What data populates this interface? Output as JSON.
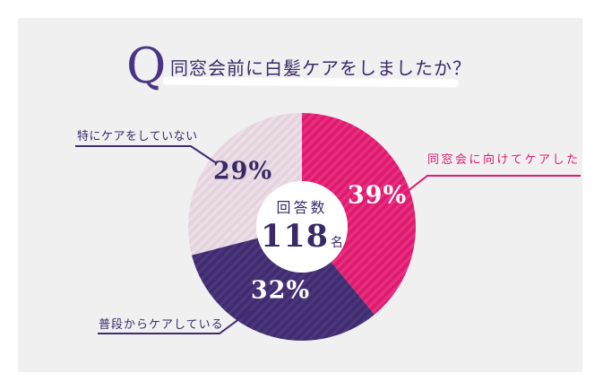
{
  "page": {
    "background": "#FFFFFF",
    "panel_background": "#F0F0F1"
  },
  "header": {
    "q_mark": "Q",
    "title": "同窓会前に白髪ケアをしましたか？"
  },
  "donut_center": {
    "label": "回答数",
    "count": "118",
    "unit": "名"
  },
  "colors": {
    "magenta": "#DF1970",
    "magenta_stripe": "#E6317E",
    "dark_purple": "#3F2B6E",
    "dark_purple_stripe": "#4B377C",
    "pale_pink": "#E4D3DE",
    "pale_pink_stripe": "#ECDFE7",
    "title_text": "#392A66",
    "q_mark_color": "#4A3585",
    "white": "#FFFFFF"
  },
  "chart_data": {
    "type": "pie",
    "donut": true,
    "title": "同窓会前に白髪ケアをしましたか？",
    "start_angle_deg": 0,
    "direction": "clockwise",
    "center_label": "回答数",
    "total_responses": 118,
    "total_unit": "名",
    "slices": [
      {
        "label": "同窓会に向けてケアした",
        "value_pct": 39,
        "pct_label": "39%",
        "color": "#DF1970",
        "stripe_color": "#E6317E",
        "pct_text_color": "#FFFFFF",
        "label_color": "#DF1970"
      },
      {
        "label": "普段からケアしている",
        "value_pct": 32,
        "pct_label": "32%",
        "color": "#3F2B6E",
        "stripe_color": "#4B377C",
        "pct_text_color": "#FFFFFF",
        "label_color": "#392A66"
      },
      {
        "label": "特にケアをしていない",
        "value_pct": 29,
        "pct_label": "29%",
        "color": "#E4D3DE",
        "stripe_color": "#ECDFE7",
        "pct_text_color": "#392A66",
        "label_color": "#392A66"
      }
    ]
  }
}
